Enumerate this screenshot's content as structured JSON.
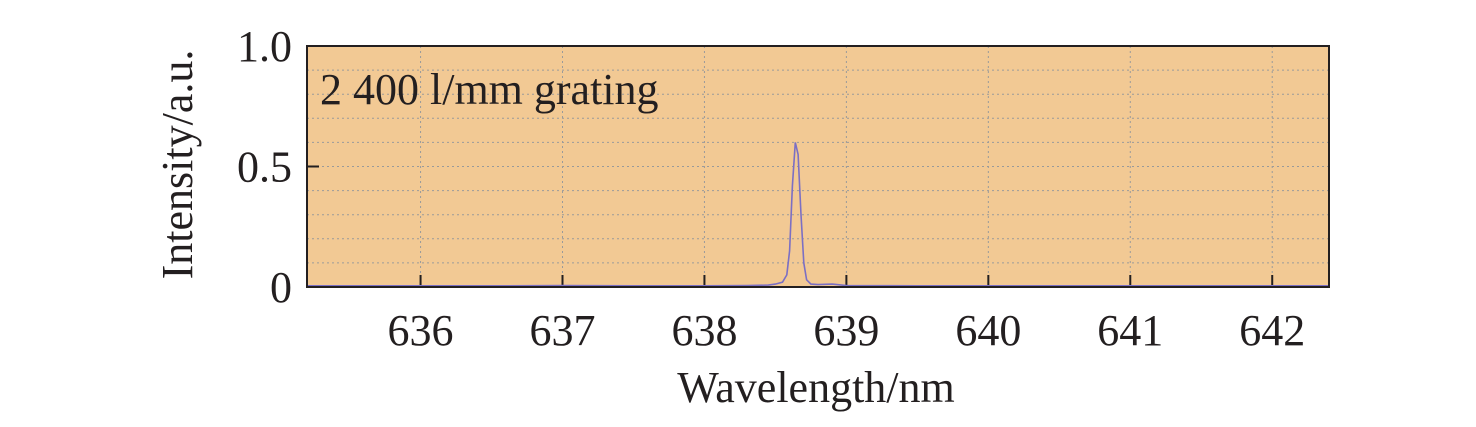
{
  "chart_data": {
    "type": "line",
    "title": "",
    "annotation": "2 400 l/mm grating",
    "xlabel": "Wavelength/nm",
    "ylabel": "Intensity/a.u.",
    "xlim": [
      635.2,
      642.4
    ],
    "ylim": [
      0,
      1.0
    ],
    "x_ticks": [
      636,
      637,
      638,
      639,
      640,
      641,
      642
    ],
    "x_tick_labels": [
      "636",
      "637",
      "638",
      "639",
      "640",
      "641",
      "642"
    ],
    "y_ticks": [
      0,
      0.5,
      1.0
    ],
    "y_tick_labels": [
      "0",
      "0.5",
      "1.0"
    ],
    "grid": true,
    "colors": {
      "background": "#f2c994",
      "line": "#7b6fc4",
      "grid": "#9a9a9a",
      "text": "#231f20"
    },
    "series": [
      {
        "x": [
          635.2,
          636.0,
          636.5,
          637.0,
          637.5,
          638.0,
          638.3,
          638.45,
          638.5,
          638.55,
          638.58,
          638.6,
          638.62,
          638.64,
          638.66,
          638.68,
          638.7,
          638.72,
          638.75,
          638.8,
          638.9,
          639.0,
          639.5,
          640.0,
          640.5,
          641.0,
          641.5,
          642.0,
          642.4
        ],
        "y": [
          0.005,
          0.005,
          0.005,
          0.006,
          0.005,
          0.005,
          0.006,
          0.008,
          0.012,
          0.02,
          0.05,
          0.15,
          0.42,
          0.6,
          0.55,
          0.3,
          0.1,
          0.03,
          0.012,
          0.01,
          0.012,
          0.006,
          0.005,
          0.005,
          0.005,
          0.005,
          0.005,
          0.005,
          0.005
        ]
      }
    ]
  }
}
